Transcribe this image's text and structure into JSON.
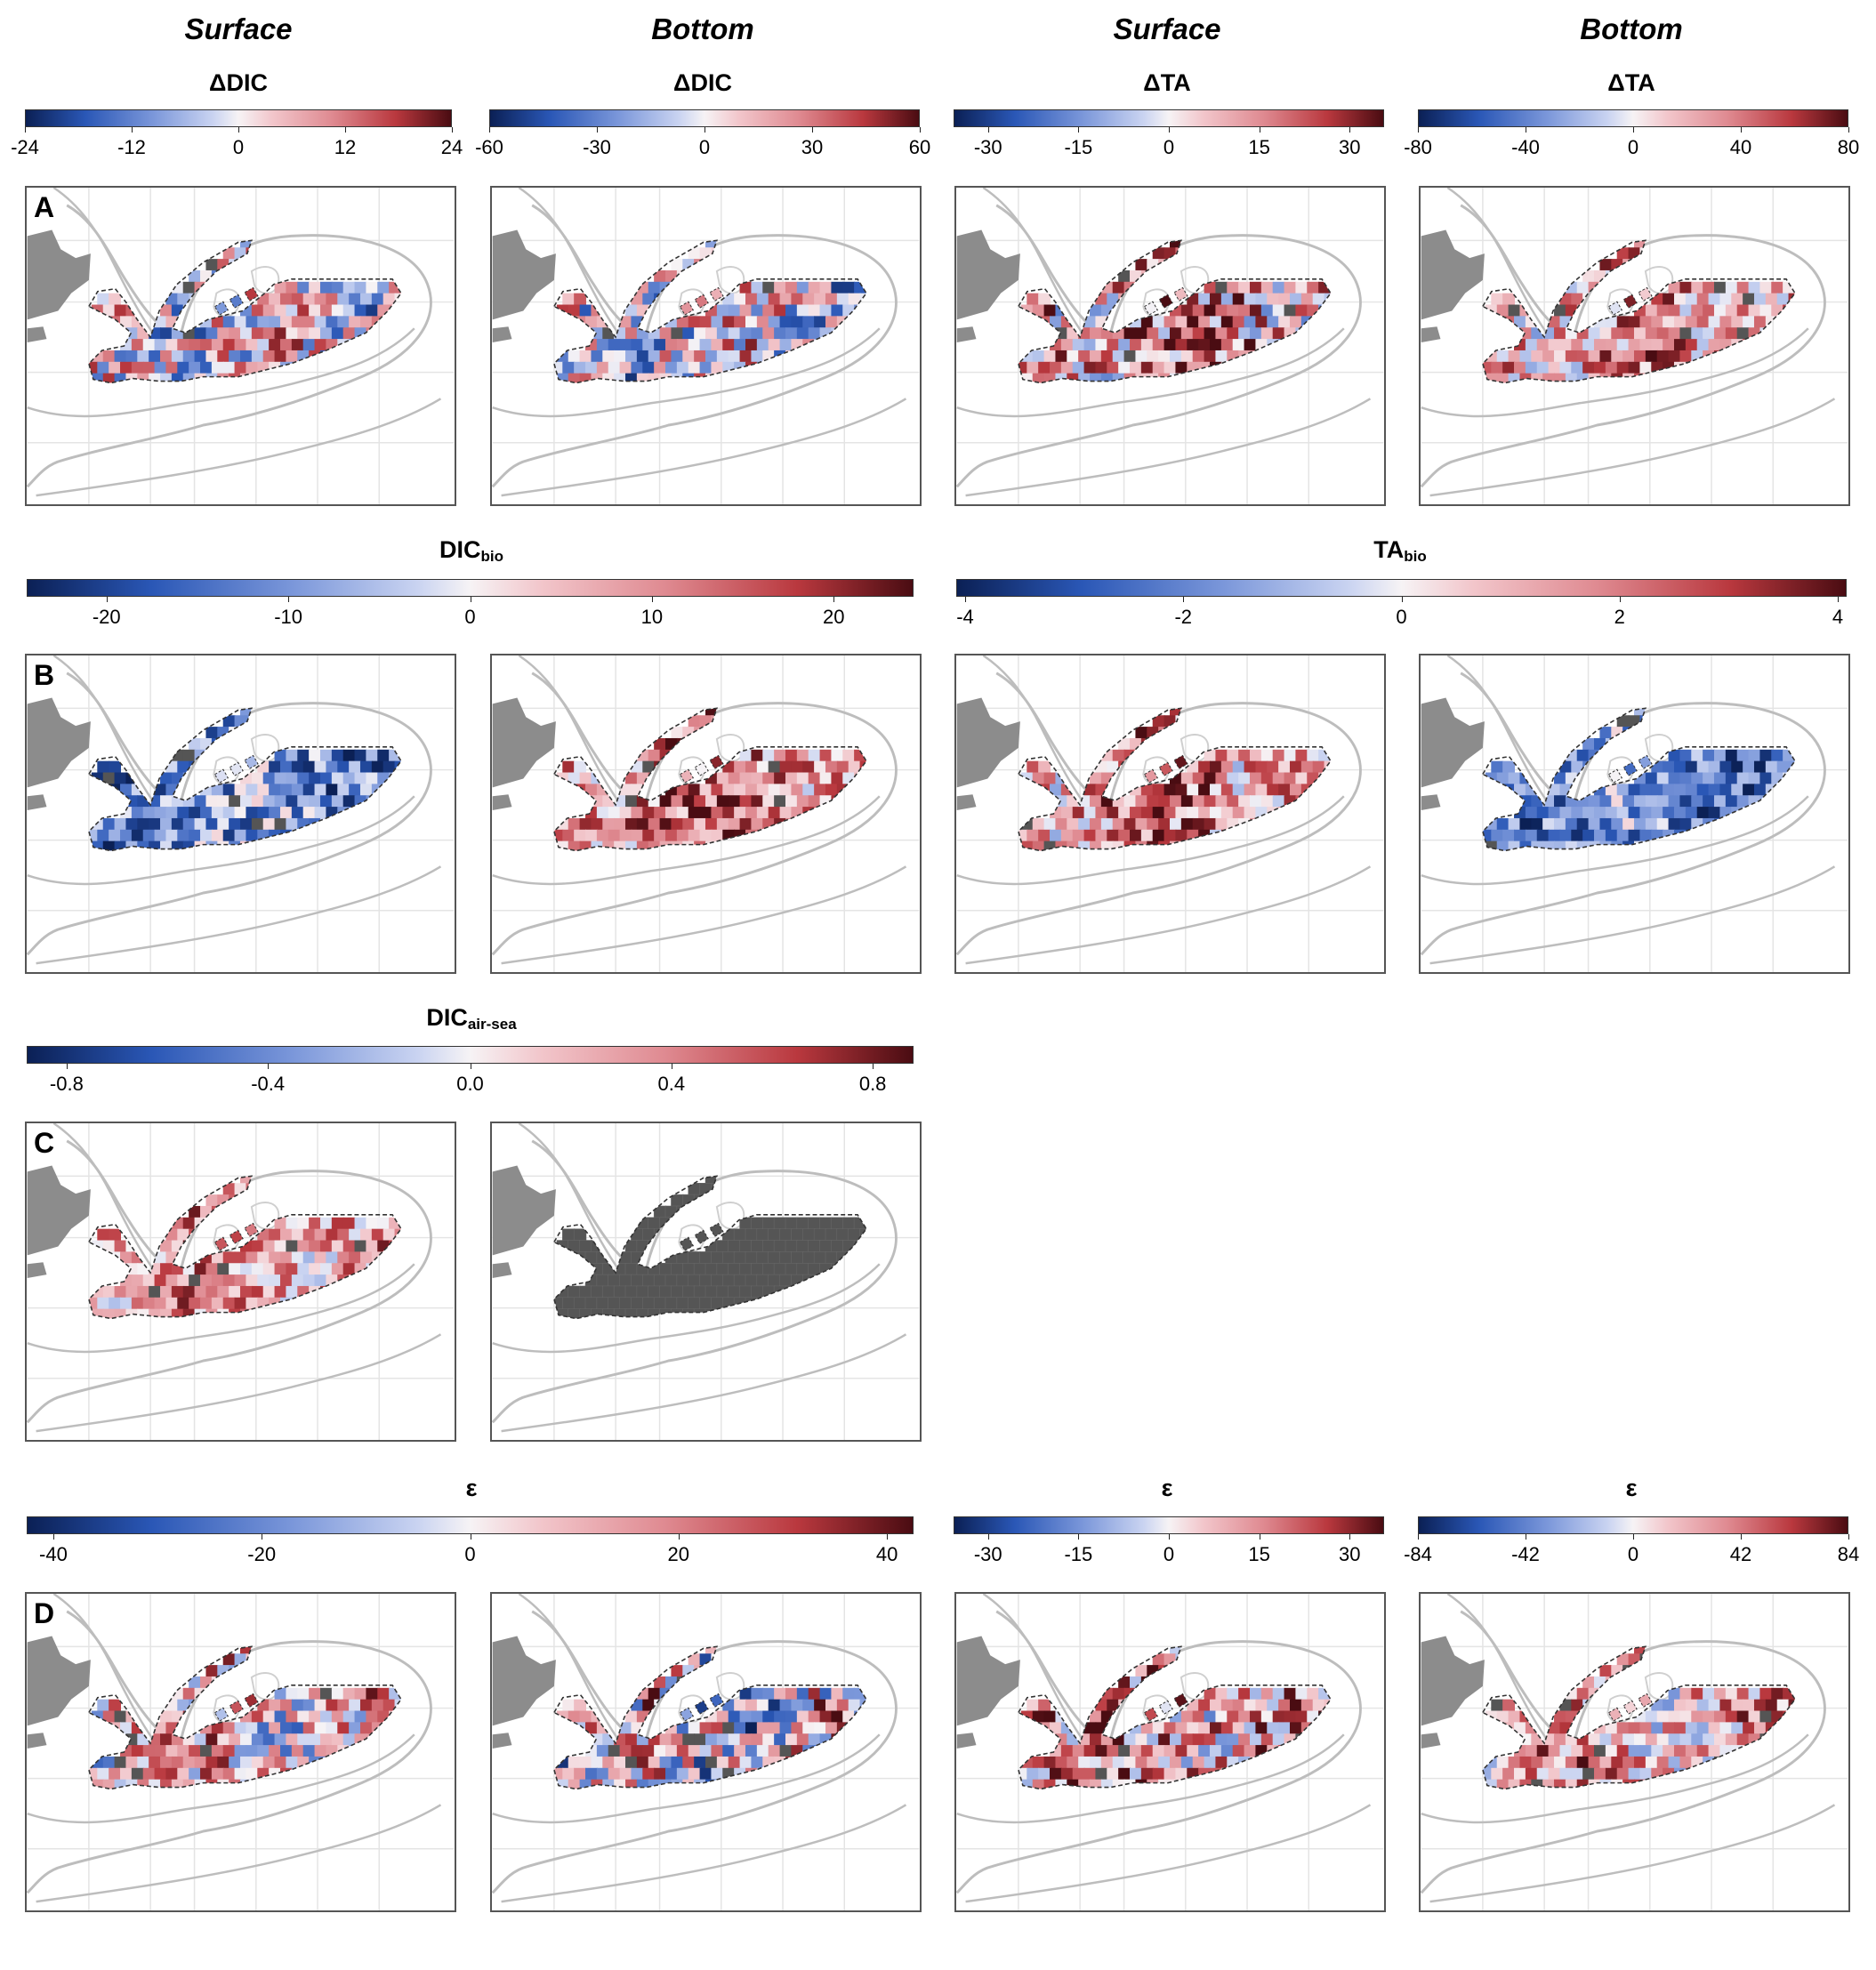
{
  "column_titles": [
    "Surface",
    "Bottom",
    "Surface",
    "Bottom"
  ],
  "row_labels": [
    "A",
    "B",
    "C",
    "D"
  ],
  "colorbars": {
    "a1": {
      "title": "ΔDIC",
      "ticks": [
        "-24",
        "-12",
        "0",
        "12",
        "24"
      ]
    },
    "a2": {
      "title": "ΔDIC",
      "ticks": [
        "-60",
        "-30",
        "0",
        "30",
        "60"
      ]
    },
    "a3": {
      "title": "ΔTA",
      "ticks": [
        "-30",
        "-15",
        "0",
        "15",
        "30"
      ]
    },
    "a4": {
      "title": "ΔTA",
      "ticks": [
        "-80",
        "-40",
        "0",
        "40",
        "80"
      ]
    },
    "b1": {
      "title_main": "DIC",
      "title_sub": "bio",
      "ticks": [
        "-20",
        "-10",
        "0",
        "10",
        "20"
      ]
    },
    "b2": {
      "title_main": "TA",
      "title_sub": "bio",
      "ticks": [
        "-4",
        "-2",
        "0",
        "2",
        "4"
      ]
    },
    "c1": {
      "title_main": "DIC",
      "title_sub": "air-sea",
      "ticks": [
        "-0.8",
        "-0.4",
        "0.0",
        "0.4",
        "0.8"
      ]
    },
    "d1": {
      "title": "ε",
      "ticks": [
        "-40",
        "-20",
        "0",
        "20",
        "40"
      ]
    },
    "d3": {
      "title": "ε",
      "ticks": [
        "-30",
        "-15",
        "0",
        "15",
        "30"
      ]
    },
    "d4": {
      "title": "ε",
      "ticks": [
        "-84",
        "-42",
        "0",
        "42",
        "84"
      ]
    }
  },
  "colors": {
    "scale_low": "#0b2055",
    "scale_mid": "#f6f3f5",
    "scale_high": "#4a0c12",
    "land": "#8c8c8c",
    "masked": "#555555",
    "coast_line": "#bdbdbd"
  }
}
